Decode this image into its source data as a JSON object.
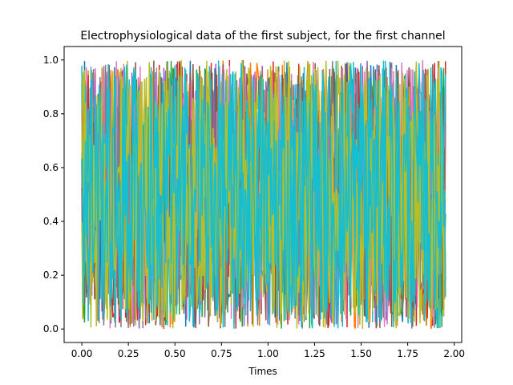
{
  "chart_data": {
    "type": "line",
    "title": "Electrophysiological data of the first subject, for the first channel",
    "xlabel": "Times",
    "ylabel": "",
    "xlim": [
      -0.095,
      2.04
    ],
    "ylim": [
      -0.05,
      1.05
    ],
    "x_ticks": [
      0.0,
      0.25,
      0.5,
      0.75,
      1.0,
      1.25,
      1.5,
      1.75,
      2.0
    ],
    "x_tick_labels": [
      "0.00",
      "0.25",
      "0.50",
      "0.75",
      "1.00",
      "1.25",
      "1.50",
      "1.75",
      "2.00"
    ],
    "y_ticks": [
      0.0,
      0.2,
      0.4,
      0.6,
      0.8,
      1.0
    ],
    "y_tick_labels": [
      "0.0",
      "0.2",
      "0.4",
      "0.6",
      "0.8",
      "1.0"
    ],
    "grid": false,
    "x_range": [
      0.0,
      1.953
    ],
    "value_range": [
      0.0,
      1.0
    ],
    "series_colors": [
      "#1f77b4",
      "#ff7f0e",
      "#2ca02c",
      "#d62728",
      "#9467bd",
      "#8c564b",
      "#e377c2",
      "#7f7f7f",
      "#bcbd22",
      "#17becf"
    ]
  }
}
